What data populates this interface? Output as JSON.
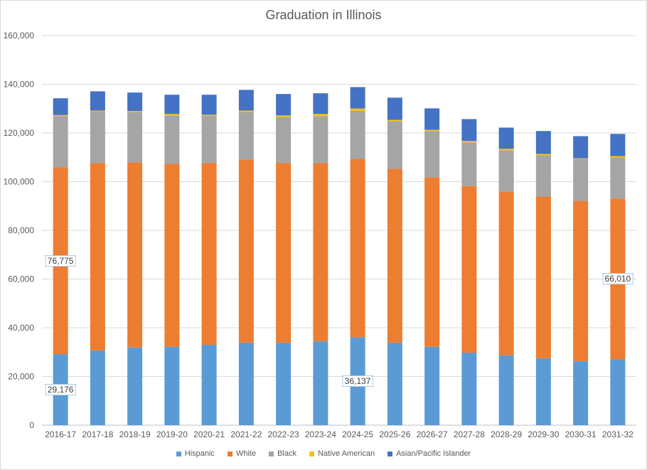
{
  "chart_data": {
    "type": "bar",
    "stacked": true,
    "title": "Graduation in Illinois",
    "xlabel": "",
    "ylabel": "",
    "ylim": [
      0,
      160000
    ],
    "yticks": [
      "0",
      "20,000",
      "40,000",
      "60,000",
      "80,000",
      "100,000",
      "120,000",
      "140,000",
      "160,000"
    ],
    "grid": true,
    "legend_position": "bottom",
    "categories": [
      "2016-17",
      "2017-18",
      "2018-19",
      "2019-20",
      "2020-21",
      "2021-22",
      "2022-23",
      "2023-24",
      "2024-25",
      "2025-26",
      "2026-27",
      "2027-28",
      "2028-29",
      "2029-30",
      "2030-31",
      "2031-32"
    ],
    "series": [
      {
        "name": "Hispanic",
        "color": "#5b9bd5",
        "values": [
          29176,
          30700,
          31900,
          32200,
          33000,
          33900,
          33900,
          34500,
          36137,
          33900,
          32200,
          29800,
          28700,
          27500,
          26300,
          27000
        ]
      },
      {
        "name": "White",
        "color": "#ed7d31",
        "values": [
          76775,
          76900,
          76000,
          75100,
          74600,
          75200,
          73700,
          73100,
          73200,
          71400,
          69600,
          68400,
          67200,
          66400,
          65800,
          66010
        ]
      },
      {
        "name": "Black",
        "color": "#a5a5a5",
        "values": [
          21000,
          21300,
          20700,
          19900,
          19600,
          19500,
          19000,
          19300,
          19800,
          19600,
          19000,
          17900,
          17000,
          16900,
          17300,
          16900
        ]
      },
      {
        "name": "Native American",
        "color": "#ffc000",
        "values": [
          400,
          300,
          400,
          600,
          300,
          600,
          600,
          900,
          900,
          500,
          500,
          600,
          600,
          600,
          200,
          600
        ]
      },
      {
        "name": "Asian/Pacific Islander",
        "color": "#4472c4",
        "values": [
          6900,
          7900,
          7600,
          7900,
          8200,
          8500,
          8800,
          8500,
          8800,
          9100,
          8800,
          9000,
          8700,
          9400,
          9100,
          9100
        ]
      }
    ],
    "data_labels": [
      {
        "series": 0,
        "category": 0,
        "text": "29,176"
      },
      {
        "series": 1,
        "category": 0,
        "text": "76,775"
      },
      {
        "series": 0,
        "category": 8,
        "text": "36,137"
      },
      {
        "series": 1,
        "category": 15,
        "text": "66,010"
      }
    ]
  }
}
